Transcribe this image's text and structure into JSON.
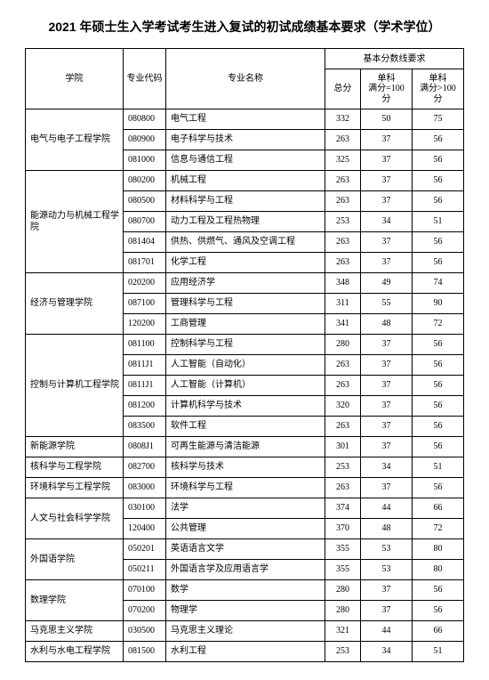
{
  "title": "2021 年硕士生入学考试考生进入复试的初试成绩基本要求（学术学位）",
  "headers": {
    "college": "学院",
    "code": "专业代码",
    "name": "专业名称",
    "group": "基本分数线要求",
    "total": "总分",
    "sub1a": "单科",
    "sub1b": "满分=100 分",
    "sub2a": "单科",
    "sub2b": "满分>100 分"
  },
  "colleges": [
    {
      "name": "电气与电子工程学院",
      "majors": [
        {
          "code": "080800",
          "name": "电气工程",
          "total": 332,
          "s1": 50,
          "s2": 75
        },
        {
          "code": "080900",
          "name": "电子科学与技术",
          "total": 263,
          "s1": 37,
          "s2": 56
        },
        {
          "code": "081000",
          "name": "信息与通信工程",
          "total": 325,
          "s1": 37,
          "s2": 56
        }
      ]
    },
    {
      "name": "能源动力与机械工程学院",
      "majors": [
        {
          "code": "080200",
          "name": "机械工程",
          "total": 263,
          "s1": 37,
          "s2": 56
        },
        {
          "code": "080500",
          "name": "材料科学与工程",
          "total": 263,
          "s1": 37,
          "s2": 56
        },
        {
          "code": "080700",
          "name": "动力工程及工程热物理",
          "total": 253,
          "s1": 34,
          "s2": 51
        },
        {
          "code": "081404",
          "name": "供热、供燃气、通风及空调工程",
          "total": 263,
          "s1": 37,
          "s2": 56
        },
        {
          "code": "081701",
          "name": "化学工程",
          "total": 263,
          "s1": 37,
          "s2": 56
        }
      ]
    },
    {
      "name": "经济与管理学院",
      "majors": [
        {
          "code": "020200",
          "name": "应用经济学",
          "total": 348,
          "s1": 49,
          "s2": 74
        },
        {
          "code": "087100",
          "name": "管理科学与工程",
          "total": 311,
          "s1": 55,
          "s2": 90
        },
        {
          "code": "120200",
          "name": "工商管理",
          "total": 341,
          "s1": 48,
          "s2": 72
        }
      ]
    },
    {
      "name": "控制与计算机工程学院",
      "majors": [
        {
          "code": "081100",
          "name": "控制科学与工程",
          "total": 280,
          "s1": 37,
          "s2": 56
        },
        {
          "code": "0811J1",
          "name": "人工智能（自动化）",
          "total": 263,
          "s1": 37,
          "s2": 56
        },
        {
          "code": "0811J1",
          "name": "人工智能（计算机）",
          "total": 263,
          "s1": 37,
          "s2": 56
        },
        {
          "code": "081200",
          "name": "计算机科学与技术",
          "total": 320,
          "s1": 37,
          "s2": 56
        },
        {
          "code": "083500",
          "name": "软件工程",
          "total": 263,
          "s1": 37,
          "s2": 56
        }
      ]
    },
    {
      "name": "新能源学院",
      "majors": [
        {
          "code": "0808J1",
          "name": "可再生能源与清洁能源",
          "total": 301,
          "s1": 37,
          "s2": 56
        }
      ]
    },
    {
      "name": "核科学与工程学院",
      "majors": [
        {
          "code": "082700",
          "name": "核科学与技术",
          "total": 253,
          "s1": 34,
          "s2": 51
        }
      ]
    },
    {
      "name": "环境科学与工程学院",
      "majors": [
        {
          "code": "083000",
          "name": "环境科学与工程",
          "total": 263,
          "s1": 37,
          "s2": 56
        }
      ]
    },
    {
      "name": "人文与社会科学学院",
      "majors": [
        {
          "code": "030100",
          "name": "法学",
          "total": 374,
          "s1": 44,
          "s2": 66
        },
        {
          "code": "120400",
          "name": "公共管理",
          "total": 370,
          "s1": 48,
          "s2": 72
        }
      ]
    },
    {
      "name": "外国语学院",
      "majors": [
        {
          "code": "050201",
          "name": "英语语言文学",
          "total": 355,
          "s1": 53,
          "s2": 80
        },
        {
          "code": "050211",
          "name": "外国语言学及应用语言学",
          "total": 355,
          "s1": 53,
          "s2": 80
        }
      ]
    },
    {
      "name": "数理学院",
      "majors": [
        {
          "code": "070100",
          "name": "数学",
          "total": 280,
          "s1": 37,
          "s2": 56
        },
        {
          "code": "070200",
          "name": "物理学",
          "total": 280,
          "s1": 37,
          "s2": 56
        }
      ]
    },
    {
      "name": "马克思主义学院",
      "majors": [
        {
          "code": "030500",
          "name": "马克思主义理论",
          "total": 321,
          "s1": 44,
          "s2": 66
        }
      ]
    },
    {
      "name": "水利与水电工程学院",
      "majors": [
        {
          "code": "081500",
          "name": "水利工程",
          "total": 253,
          "s1": 34,
          "s2": 51
        }
      ]
    }
  ]
}
